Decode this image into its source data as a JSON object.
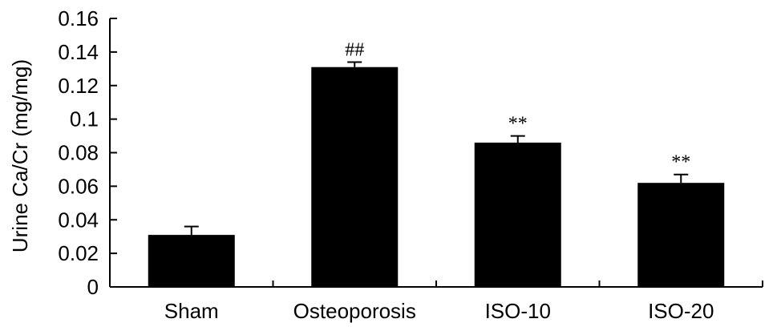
{
  "chart_data": {
    "type": "bar",
    "title": "",
    "xlabel": "",
    "ylabel": "Urine Ca/Cr (mg/mg)",
    "ylim": [
      0,
      0.16
    ],
    "yticks": [
      0,
      0.02,
      0.04,
      0.06,
      0.08,
      0.1,
      0.12,
      0.14,
      0.16
    ],
    "ytick_labels": [
      "0",
      "0.02",
      "0.04",
      "0.06",
      "0.08",
      "0.1",
      "0.12",
      "0.14",
      "0.16"
    ],
    "categories": [
      "Sham",
      "Osteoporosis",
      "ISO-10",
      "ISO-20"
    ],
    "values": [
      0.031,
      0.131,
      0.086,
      0.062
    ],
    "errors": [
      0.005,
      0.003,
      0.004,
      0.005
    ],
    "annotations": [
      "",
      "##",
      "**",
      "**"
    ],
    "bar_color": "#000000",
    "grid": false
  }
}
